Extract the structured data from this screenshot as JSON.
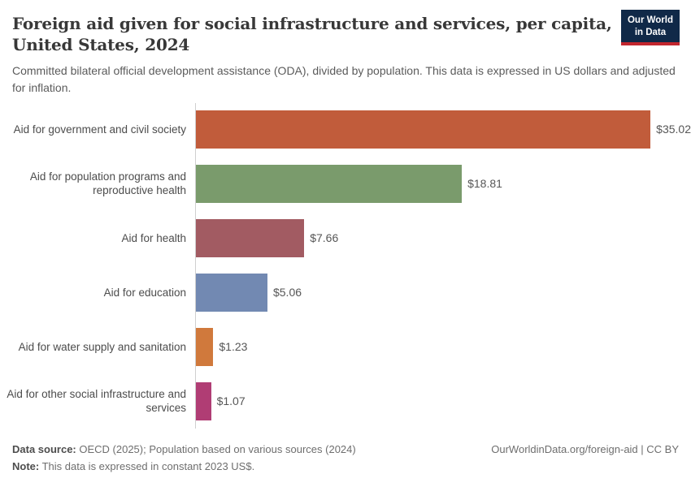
{
  "header": {
    "title": "Foreign aid given for social infrastructure and services, per capita, United States, 2024",
    "subtitle": "Committed bilateral official development assistance (ODA), divided by population. This data is expressed in US dollars and adjusted for inflation.",
    "logo": {
      "line1": "Our World",
      "line2": "in Data"
    }
  },
  "chart_data": {
    "type": "bar",
    "orientation": "horizontal",
    "title": "Foreign aid given for social infrastructure and services, per capita, United States, 2024",
    "categories": [
      "Aid for government and civil society",
      "Aid for population programs and reproductive health",
      "Aid for health",
      "Aid for education",
      "Aid for water supply and sanitation",
      "Aid for other social infrastructure and services"
    ],
    "values": [
      35.02,
      18.81,
      7.66,
      5.06,
      1.23,
      1.07
    ],
    "value_labels": [
      "$35.02",
      "$18.81",
      "$7.66",
      "$5.06",
      "$1.23",
      "$1.07"
    ],
    "bar_colors": [
      "#C15C3B",
      "#7A9B6C",
      "#A25B62",
      "#7289B2",
      "#D0793C",
      "#B03D74"
    ],
    "xlim": [
      0,
      35.02
    ],
    "grid": false,
    "legend": false
  },
  "colors": {
    "logo_bg": "#102948",
    "logo_accent": "#c2262e",
    "axis": "#cfcfcf"
  },
  "footer": {
    "source_label": "Data source:",
    "source_text": " OECD (2025); Population based on various sources (2024)",
    "note_label": "Note:",
    "note_text": " This data is expressed in constant 2023 US$.",
    "link": "OurWorldinData.org/foreign-aid | CC BY"
  }
}
